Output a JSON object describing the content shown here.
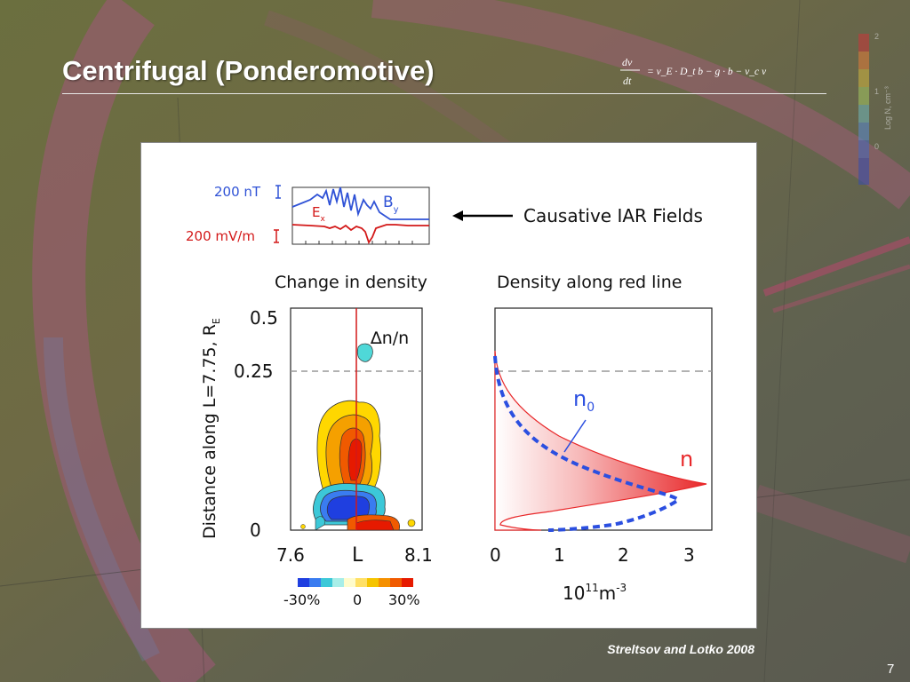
{
  "slide": {
    "title": "Centrifugal (Ponderomotive)",
    "equation": {
      "numerator": "dv",
      "denominator": "dt",
      "rhs": "= v_E · D_t b − g · b − ν_c v"
    },
    "citation": "Streltsov and Lotko 2008",
    "page_number": "7",
    "background_colorbar": {
      "ticks": [
        "2",
        "1",
        "0"
      ],
      "label": "Log N, cm⁻³"
    }
  },
  "figure": {
    "fields_panel": {
      "b_scale_label": "200 nT",
      "e_scale_label": "200 mV/m",
      "by_label": "B",
      "by_sub": "y",
      "ex_label": "E",
      "ex_sub": "x",
      "arrow_label": "Causative IAR Fields",
      "b_color": "#2f52d6",
      "e_color": "#d31919"
    },
    "left_panel": {
      "title": "Change in density",
      "ylabel_main": "Distance along L=7.75, R",
      "ylabel_sub": "E",
      "yticks": [
        "0.5",
        "0.25",
        "0"
      ],
      "xticks": [
        "7.6",
        "L",
        "8.1"
      ],
      "annotation": "∆n/n",
      "colorbar_labels": [
        "-30%",
        "0",
        "30%"
      ],
      "colorbar_colors": [
        "#1f3fe0",
        "#3a7cf0",
        "#3cc8d8",
        "#a8eee8",
        "#fffccc",
        "#ffe066",
        "#f5c400",
        "#f59000",
        "#f05a00",
        "#e61a00"
      ]
    },
    "right_panel": {
      "title": "Density along red line",
      "xticks": [
        "0",
        "1",
        "2",
        "3"
      ],
      "xlabel_base": "10",
      "xlabel_exp1": "11",
      "xlabel_unit": "m",
      "xlabel_exp2": "-3",
      "n0_label": "n",
      "n0_sub": "0",
      "n_label": "n",
      "n_color": "#e8282a",
      "n0_color": "#2b4fe0"
    }
  }
}
